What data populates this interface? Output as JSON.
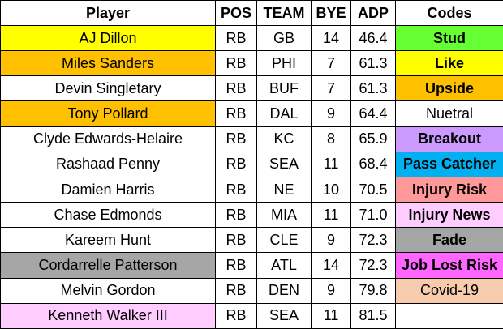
{
  "table": {
    "header": [
      "Player",
      "POS",
      "TEAM",
      "BYE",
      "ADP",
      "Codes"
    ],
    "rows": [
      {
        "player": "AJ Dillon",
        "color": "#ffff00",
        "pos": "RB",
        "team": "GB",
        "bye": "14",
        "adp": "46.4",
        "code": {
          "label": "Stud",
          "color": "#66ff33",
          "bold": true
        }
      },
      {
        "player": "Miles Sanders",
        "color": "#ffc000",
        "pos": "RB",
        "team": "PHI",
        "bye": "7",
        "adp": "61.3",
        "code": {
          "label": "Like",
          "color": "#ffff00",
          "bold": true
        }
      },
      {
        "player": "Devin Singletary",
        "color": "#ffffff",
        "pos": "RB",
        "team": "BUF",
        "bye": "7",
        "adp": "61.3",
        "code": {
          "label": "Upside",
          "color": "#ffc000",
          "bold": true
        }
      },
      {
        "player": "Tony Pollard",
        "color": "#ffc000",
        "pos": "RB",
        "team": "DAL",
        "bye": "9",
        "adp": "64.4",
        "code": {
          "label": "Nuetral",
          "color": "#ffffff",
          "bold": false
        }
      },
      {
        "player": "Clyde Edwards-Helaire",
        "color": "#ffffff",
        "pos": "RB",
        "team": "KC",
        "bye": "8",
        "adp": "65.9",
        "code": {
          "label": "Breakout",
          "color": "#cc99ff",
          "bold": true
        }
      },
      {
        "player": "Rashaad Penny",
        "color": "#ffffff",
        "pos": "RB",
        "team": "SEA",
        "bye": "11",
        "adp": "68.4",
        "code": {
          "label": "Pass Catcher",
          "color": "#00b0f0",
          "bold": true
        }
      },
      {
        "player": "Damien Harris",
        "color": "#ffffff",
        "pos": "RB",
        "team": "NE",
        "bye": "10",
        "adp": "70.5",
        "code": {
          "label": "Injury Risk",
          "color": "#ff9999",
          "bold": true
        }
      },
      {
        "player": "Chase Edmonds",
        "color": "#ffffff",
        "pos": "RB",
        "team": "MIA",
        "bye": "11",
        "adp": "71.0",
        "code": {
          "label": "Injury News",
          "color": "#ffccff",
          "bold": true
        }
      },
      {
        "player": "Kareem Hunt",
        "color": "#ffffff",
        "pos": "RB",
        "team": "CLE",
        "bye": "9",
        "adp": "72.3",
        "code": {
          "label": "Fade",
          "color": "#a6a6a6",
          "bold": true
        }
      },
      {
        "player": "Cordarrelle Patterson",
        "color": "#a6a6a6",
        "pos": "RB",
        "team": "ATL",
        "bye": "14",
        "adp": "72.3",
        "code": {
          "label": "Job Lost Risk",
          "color": "#ff66ff",
          "bold": true
        }
      },
      {
        "player": "Melvin Gordon",
        "color": "#ffffff",
        "pos": "RB",
        "team": "DEN",
        "bye": "9",
        "adp": "79.8",
        "code": {
          "label": "Covid-19",
          "color": "#f8cbad",
          "bold": false
        }
      },
      {
        "player": "Kenneth Walker III",
        "color": "#ffccff",
        "pos": "RB",
        "team": "SEA",
        "bye": "11",
        "adp": "81.5"
      }
    ]
  }
}
